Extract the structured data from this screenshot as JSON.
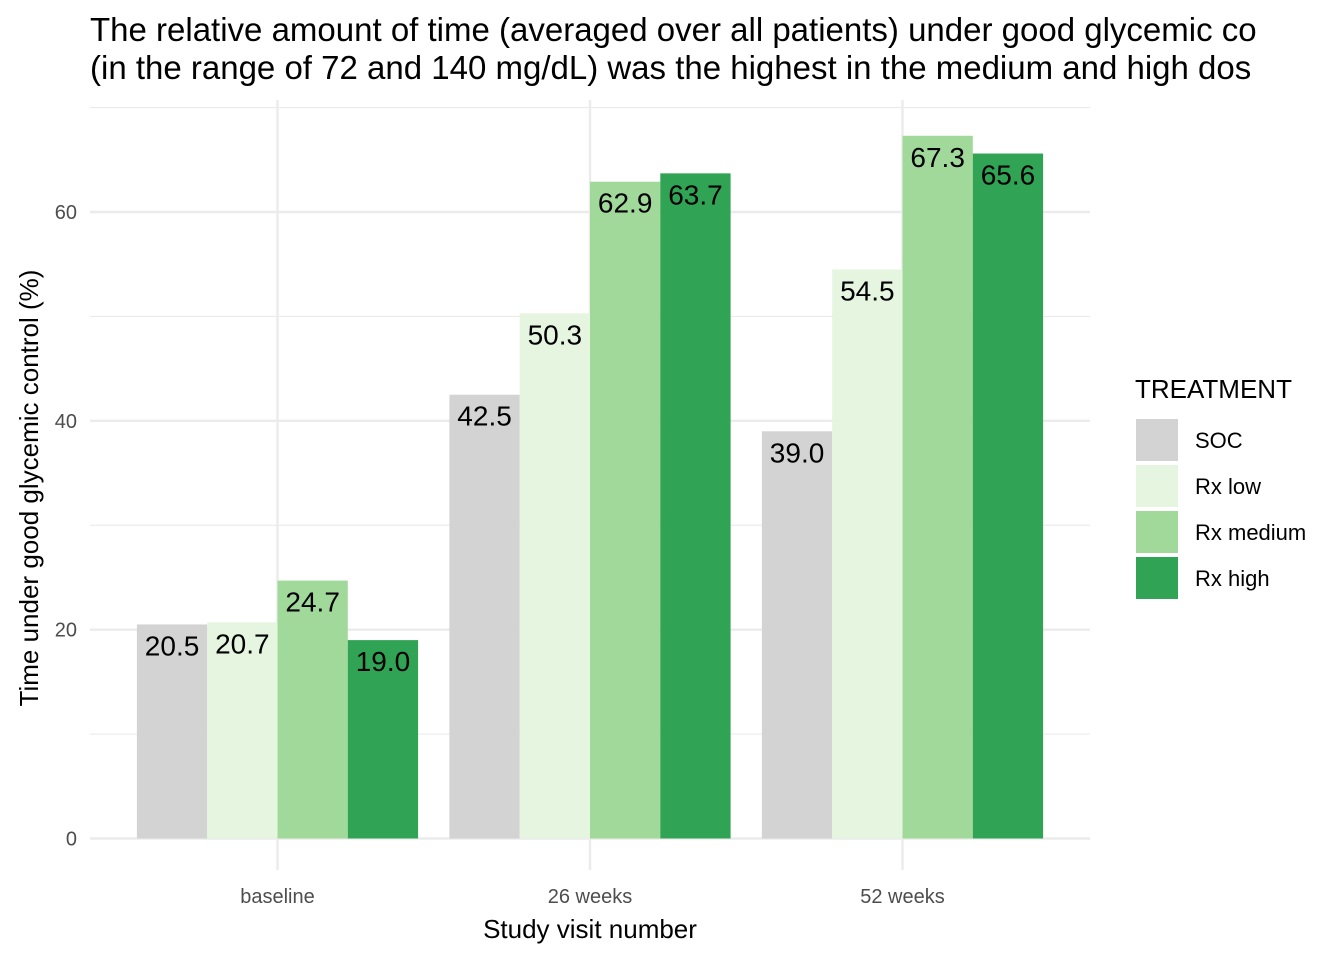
{
  "chart_data": {
    "type": "bar",
    "title": "The relative amount of time (averaged over all patients) under good glycemic co",
    "subtitle": "(in the range of 72 and 140 mg/dL) was the highest in the medium and high dos",
    "xlabel": "Study visit number",
    "ylabel": "Time under good glycemic control (%)",
    "categories": [
      "baseline",
      "26 weeks",
      "52 weeks"
    ],
    "ylim": [
      0,
      70
    ],
    "yticks": [
      0,
      20,
      40,
      60
    ],
    "yticks_minor": [
      10,
      30,
      50,
      70
    ],
    "grid": true,
    "legend": {
      "title": "TREATMENT",
      "position": "right"
    },
    "series": [
      {
        "name": "SOC",
        "color": "#d3d3d3",
        "values": [
          20.5,
          42.5,
          39.0
        ],
        "labels": [
          "20.5",
          "42.5",
          "39.0"
        ]
      },
      {
        "name": "Rx low",
        "color": "#e5f5e0",
        "values": [
          20.7,
          50.3,
          54.5
        ],
        "labels": [
          "20.7",
          "50.3",
          "54.5"
        ]
      },
      {
        "name": "Rx medium",
        "color": "#a1d99b",
        "values": [
          24.7,
          62.9,
          67.3
        ],
        "labels": [
          "24.7",
          "62.9",
          "67.3"
        ]
      },
      {
        "name": "Rx high",
        "color": "#31a354",
        "values": [
          19.0,
          63.7,
          65.6
        ],
        "labels": [
          "19.0",
          "63.7",
          "65.6"
        ]
      }
    ]
  }
}
